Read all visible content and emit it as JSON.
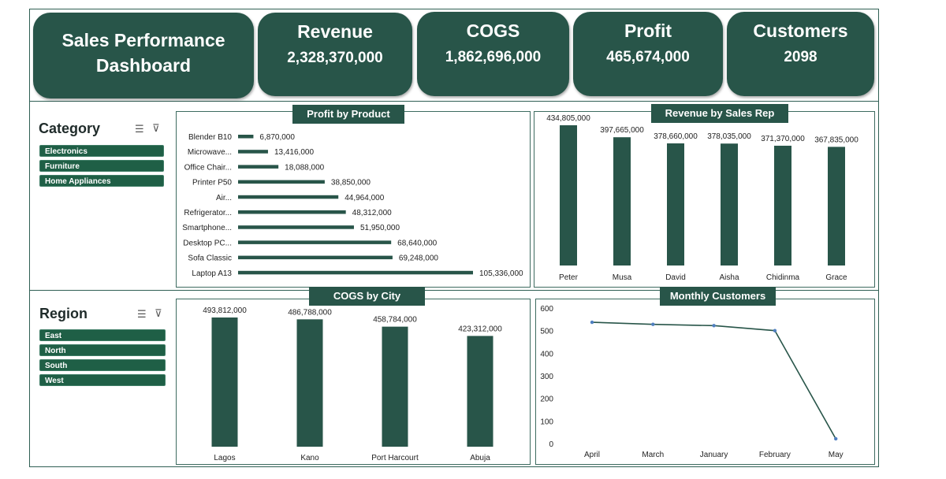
{
  "header": {
    "title_line1": "Sales Performance",
    "title_line2": "Dashboard",
    "kpis": [
      {
        "label": "Revenue",
        "value": "2,328,370,000"
      },
      {
        "label": "COGS",
        "value": "1,862,696,000"
      },
      {
        "label": "Profit",
        "value": "465,674,000"
      },
      {
        "label": "Customers",
        "value": "2098"
      }
    ]
  },
  "slicers": {
    "category": {
      "title": "Category",
      "items": [
        "Electronics",
        "Furniture",
        "Home Appliances"
      ]
    },
    "region": {
      "title": "Region",
      "items": [
        "East",
        "North",
        "South",
        "West"
      ]
    },
    "icons": [
      "multi-select-icon",
      "clear-filter-icon"
    ]
  },
  "colors": {
    "accent": "#285549",
    "bar": "#285549",
    "line": "#285549",
    "marker": "#4f7fc0"
  },
  "chart_data": [
    {
      "type": "bar",
      "orientation": "horizontal",
      "title": "Profit by Product",
      "categories": [
        "Blender B10",
        "Microwave...",
        "Office Chair...",
        "Printer P50",
        "Air...",
        "Refrigerator...",
        "Smartphone...",
        "Desktop PC...",
        "Sofa Classic",
        "Laptop A13"
      ],
      "values": [
        6870000,
        13416000,
        18088000,
        38850000,
        44964000,
        48312000,
        51950000,
        68640000,
        69248000,
        105336000
      ],
      "labels": [
        "6,870,000",
        "13,416,000",
        "18,088,000",
        "38,850,000",
        "44,964,000",
        "48,312,000",
        "51,950,000",
        "68,640,000",
        "69,248,000",
        "105,336,000"
      ]
    },
    {
      "type": "bar",
      "title": "Revenue by Sales Rep",
      "categories": [
        "Peter",
        "Musa",
        "David",
        "Aisha",
        "Chidinma",
        "Grace"
      ],
      "values": [
        434805000,
        397665000,
        378660000,
        378035000,
        371370000,
        367835000
      ],
      "labels": [
        "434,805,000",
        "397,665,000",
        "378,660,000",
        "378,035,000",
        "371,370,000",
        "367,835,000"
      ]
    },
    {
      "type": "bar",
      "title": "COGS by City",
      "categories": [
        "Lagos",
        "Kano",
        "Port Harcourt",
        "Abuja"
      ],
      "values": [
        493812000,
        486788000,
        458784000,
        423312000
      ],
      "labels": [
        "493,812,000",
        "486,788,000",
        "458,784,000",
        "423,312,000"
      ]
    },
    {
      "type": "line",
      "title": "Monthly Customers",
      "categories": [
        "April",
        "March",
        "January",
        "February",
        "May"
      ],
      "values": [
        537,
        528,
        522,
        500,
        21
      ],
      "yticks": [
        "0",
        "100",
        "200",
        "300",
        "400",
        "500",
        "600"
      ],
      "ylim": [
        0,
        600
      ]
    }
  ]
}
